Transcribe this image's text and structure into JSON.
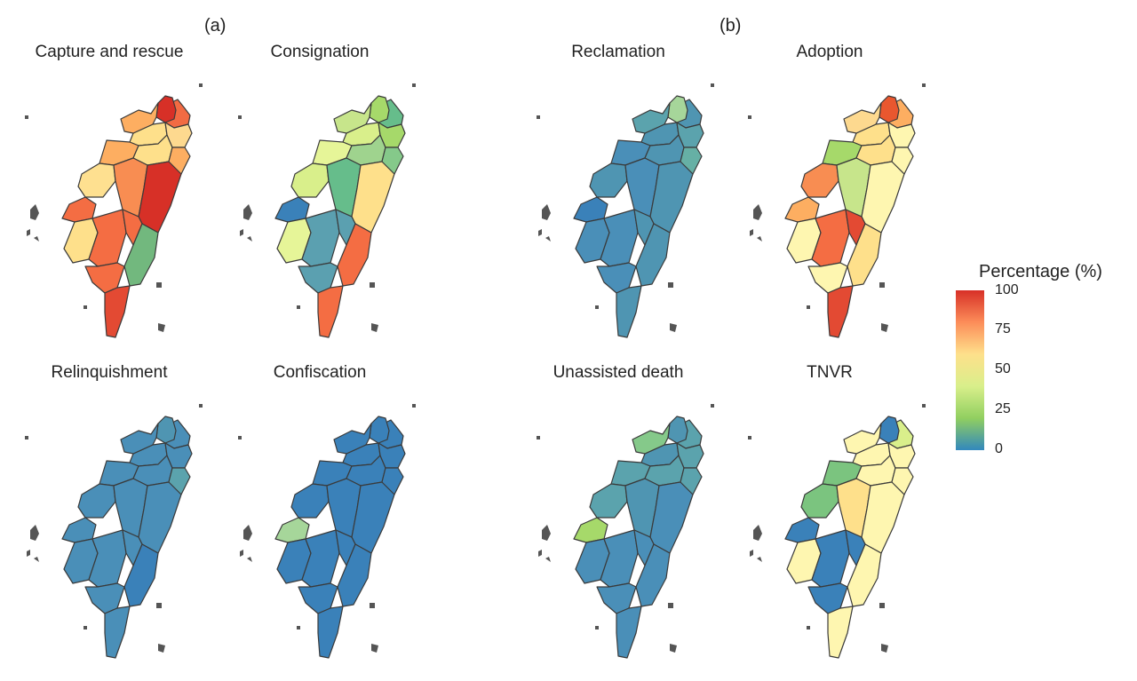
{
  "panel_labels": {
    "a": "(a)",
    "b": "(b)"
  },
  "maps": [
    {
      "title": "Capture and rescue",
      "colors": [
        "#f26b43",
        "#d73027",
        "#fee08b",
        "#fdae61",
        "#fdae61",
        "#fee08b",
        "#fdd98f",
        "#fdae61",
        "#fee090",
        "#f46d43",
        "#f88d52",
        "#d73027",
        "#fee08b",
        "#f46d43",
        "#f46d43",
        "#72b87e",
        "#f46d43",
        "#e34a33"
      ]
    },
    {
      "title": "Consignation",
      "colors": [
        "#66bd8b",
        "#a6d96a",
        "#d9ef8b",
        "#c7e58b",
        "#e6f598",
        "#9fd38e",
        "#a6d96a",
        "#85c98a",
        "#d9ef8b",
        "#3a81b9",
        "#66bd8b",
        "#fee08b",
        "#e6f598",
        "#5ba0b0",
        "#5ba0b0",
        "#f46d43",
        "#5ba0b0",
        "#f46d43"
      ]
    },
    {
      "title": "Reclamation",
      "colors": [
        "#4f95b2",
        "#a6d69a",
        "#4f95b2",
        "#5ba3ad",
        "#4a8fb8",
        "#4f95b2",
        "#5ba3ad",
        "#66b0a5",
        "#4f95b2",
        "#3a81b9",
        "#4a8fb8",
        "#4f95b2",
        "#4a8fb8",
        "#4a8fb8",
        "#4f95b2",
        "#4f95b2",
        "#4a8fb8",
        "#4f95b2"
      ]
    },
    {
      "title": "Adoption",
      "colors": [
        "#fdae61",
        "#e9572f",
        "#fee08b",
        "#fdd98f",
        "#a6d96a",
        "#fee08b",
        "#fef6b0",
        "#fef6b0",
        "#f88d52",
        "#fdae61",
        "#c7e58b",
        "#fef6b0",
        "#fef6b0",
        "#f46d43",
        "#e34a33",
        "#fee08b",
        "#fef6b0",
        "#e34a33"
      ]
    },
    {
      "title": "Relinquishment",
      "colors": [
        "#4a8fb8",
        "#4f95b2",
        "#4a8fb8",
        "#4a8fb8",
        "#4a8fb8",
        "#4a8fb8",
        "#4a8fb8",
        "#5ba3ad",
        "#4a8fb8",
        "#4a8fb8",
        "#4a8fb8",
        "#4a8fb8",
        "#4a8fb8",
        "#4a8fb8",
        "#4a8fb8",
        "#3a81b9",
        "#4a8fb8",
        "#4a8fb8"
      ]
    },
    {
      "title": "Confiscation",
      "colors": [
        "#3a81b9",
        "#3a81b9",
        "#3a81b9",
        "#3a81b9",
        "#3a81b9",
        "#3a81b9",
        "#3a81b9",
        "#3a81b9",
        "#3a81b9",
        "#a6d69a",
        "#3a81b9",
        "#3a81b9",
        "#3a81b9",
        "#3a81b9",
        "#3a81b9",
        "#3a81b9",
        "#3a81b9",
        "#3a81b9"
      ]
    },
    {
      "title": "Unassisted death",
      "colors": [
        "#5ba3ad",
        "#4f95b2",
        "#4f95b2",
        "#85c98a",
        "#5ba3ad",
        "#5ba3ad",
        "#5ba3ad",
        "#5ba3ad",
        "#5ba3ad",
        "#a6d96a",
        "#4f95b2",
        "#4a8fb8",
        "#4a8fb8",
        "#4a8fb8",
        "#4a8fb8",
        "#4a8fb8",
        "#4a8fb8",
        "#4a8fb8"
      ]
    },
    {
      "title": "TNVR",
      "colors": [
        "#d9ef8b",
        "#3a81b9",
        "#fef6b0",
        "#fef6b0",
        "#7bc47f",
        "#fef6b0",
        "#fef6b0",
        "#fef6b0",
        "#7bc47f",
        "#3a81b9",
        "#fee08b",
        "#fef6b0",
        "#fef6b0",
        "#3a81b9",
        "#3a81b9",
        "#fef6b0",
        "#3a81b9",
        "#fef6b0"
      ]
    }
  ],
  "legend": {
    "title": "Percentage (%)",
    "ticks": [
      "100",
      "75",
      "50",
      "25",
      "0"
    ],
    "gradient": [
      "#d73027",
      "#fc8d59",
      "#fee08b",
      "#d9ef8b",
      "#91cf60",
      "#3288bd"
    ]
  },
  "colors": {
    "border": "#3a3a3a",
    "islet": "#555555"
  }
}
